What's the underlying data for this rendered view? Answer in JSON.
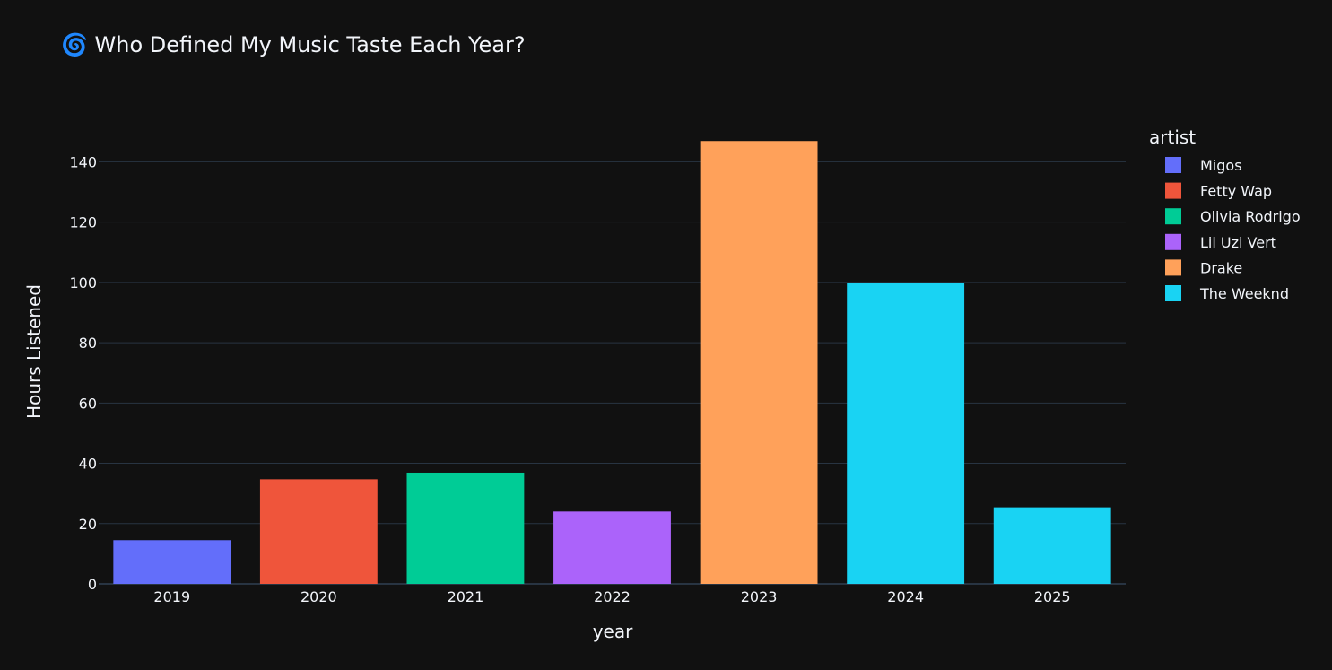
{
  "chart_data": {
    "type": "bar",
    "title": "🌀 Who Defined My Music Taste Each Year?",
    "xlabel": "year",
    "ylabel": "Hours Listened",
    "categories": [
      "2019",
      "2020",
      "2021",
      "2022",
      "2023",
      "2024",
      "2025"
    ],
    "values": [
      14.5,
      34.7,
      36.9,
      24.0,
      146.9,
      99.8,
      25.4
    ],
    "bar_artists": [
      "Migos",
      "Fetty Wap",
      "Olivia Rodrigo",
      "Lil Uzi Vert",
      "Drake",
      "The Weeknd",
      "The Weeknd"
    ],
    "ylim": [
      0,
      155
    ],
    "yticks": [
      0,
      20,
      40,
      60,
      80,
      100,
      120,
      140
    ],
    "grid": true,
    "legend": {
      "title": "artist",
      "position": "right",
      "entries": [
        {
          "name": "Migos",
          "color": "#636efa"
        },
        {
          "name": "Fetty Wap",
          "color": "#EF553B"
        },
        {
          "name": "Olivia Rodrigo",
          "color": "#00cc96"
        },
        {
          "name": "Lil Uzi Vert",
          "color": "#ab63fa"
        },
        {
          "name": "Drake",
          "color": "#FFA15A"
        },
        {
          "name": "The Weeknd",
          "color": "#19d3f3"
        }
      ]
    }
  },
  "colors": {
    "background": "#111111",
    "grid": "#283442",
    "text": "#f2f5fa"
  }
}
